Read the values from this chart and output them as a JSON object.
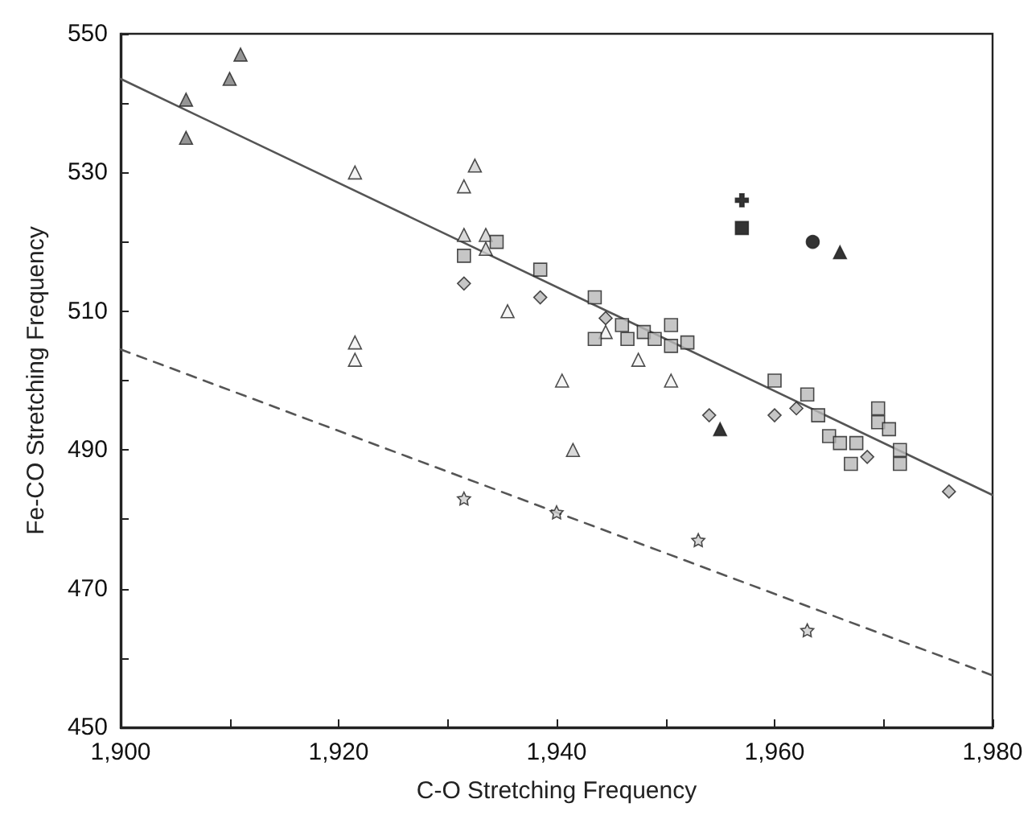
{
  "chart_data": {
    "type": "scatter",
    "xlabel": "C-O Stretching Frequency",
    "ylabel": "Fe-CO Stretching Frequency",
    "xlim": [
      1900,
      1980
    ],
    "ylim": [
      450,
      550
    ],
    "xticks": [
      {
        "value": 1900,
        "label": "1,900"
      },
      {
        "value": 1910,
        "label": null
      },
      {
        "value": 1920,
        "label": "1,920"
      },
      {
        "value": 1930,
        "label": null
      },
      {
        "value": 1940,
        "label": "1,940"
      },
      {
        "value": 1950,
        "label": null
      },
      {
        "value": 1960,
        "label": "1,960"
      },
      {
        "value": 1970,
        "label": null
      },
      {
        "value": 1980,
        "label": "1,980"
      }
    ],
    "yticks": [
      450,
      {
        "value": 460,
        "label": null
      },
      470,
      {
        "value": 480,
        "label": null
      },
      490,
      {
        "value": 500,
        "label": null
      },
      510,
      {
        "value": 520,
        "label": null
      },
      530,
      {
        "value": 540,
        "label": null
      },
      550
    ],
    "grid": false,
    "series": [
      {
        "color": "#7a7a7a",
        "marker": "triangle",
        "x": [
          1906,
          1906,
          1910,
          1911
        ],
        "values": [
          540.5,
          535,
          543.5,
          547
        ]
      },
      {
        "color": "#d0d0d0",
        "marker": "triangle",
        "x": [
          1931.5,
          1933.5,
          1933.5,
          1932.5,
          1941.5
        ],
        "values": [
          521,
          521,
          519,
          531,
          490
        ]
      },
      {
        "color": "#f2f2f2",
        "marker": "triangle",
        "x": [
          1921.5,
          1921.5,
          1921.5,
          1931.5,
          1935.5,
          1940.5,
          1950.5,
          1947.5,
          1944.5
        ],
        "values": [
          530,
          505.5,
          503,
          528,
          510,
          500,
          500,
          503,
          507
        ]
      },
      {
        "color": "#b8b8b8",
        "marker": "square",
        "x": [
          1931.5,
          1934.5,
          1938.5,
          1943.5,
          1943.5,
          1946,
          1946.5,
          1948,
          1949,
          1950.5,
          1950.5,
          1952,
          1960,
          1963,
          1964,
          1965,
          1966,
          1967.5,
          1967,
          1969.5,
          1969.5,
          1971.5,
          1971.5,
          1970.5
        ],
        "values": [
          518,
          520,
          516,
          512,
          506,
          508,
          506,
          507,
          506,
          508,
          505,
          505.5,
          500,
          498,
          495,
          492,
          491,
          491,
          488,
          496,
          494,
          490,
          488,
          493
        ]
      },
      {
        "color": "#b8b8b8",
        "marker": "diamond",
        "x": [
          1931.5,
          1938.5,
          1944.5,
          1954,
          1960,
          1962,
          1968.5,
          1976
        ],
        "values": [
          514,
          512,
          509,
          495,
          495,
          496,
          489,
          484
        ]
      },
      {
        "color": "#d0d0d0",
        "marker": "star",
        "x": [
          1931.5,
          1940,
          1953,
          1963
        ],
        "values": [
          483,
          481,
          477,
          464
        ]
      },
      {
        "color": "#000000",
        "marker": "cross",
        "x": [
          1957
        ],
        "values": [
          526
        ]
      },
      {
        "color": "#000000",
        "marker": "square",
        "x": [
          1957
        ],
        "values": [
          522
        ]
      },
      {
        "color": "#000000",
        "marker": "circle",
        "x": [
          1963.5
        ],
        "values": [
          520
        ]
      },
      {
        "color": "#000000",
        "marker": "triangle",
        "x": [
          1966
        ],
        "values": [
          518.5
        ]
      },
      {
        "color": "#000000",
        "marker": "triangle",
        "x": [
          1955
        ],
        "values": [
          493
        ]
      },
      {
        "type": "line",
        "color": "#555555",
        "marker": "none",
        "line_style": "solid",
        "x": [
          1900,
          1980
        ],
        "values": [
          543.5,
          483.5
        ]
      },
      {
        "type": "line",
        "color": "#555555",
        "marker": "none",
        "line_style": "dashed",
        "x": [
          1900,
          1980
        ],
        "values": [
          504.5,
          457.5
        ]
      }
    ]
  }
}
